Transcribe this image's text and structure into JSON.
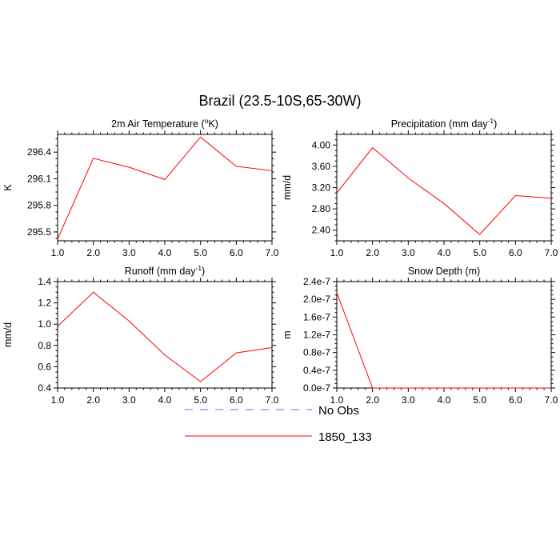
{
  "figure": {
    "title": "Brazil (23.5-10S,65-30W)"
  },
  "legend": {
    "placement": "bottom-center",
    "entries": [
      {
        "label": "No Obs",
        "color": "#6666ff",
        "dashed": true
      },
      {
        "label": "1850_133",
        "color": "#ff0000",
        "dashed": false
      }
    ]
  },
  "chart_data": [
    {
      "type": "line",
      "title": "2m Air Temperature (°K)",
      "title_parts": {
        "base": "2m Air Temperature (",
        "sup": "o",
        "rest": "K)"
      },
      "xlabel": "",
      "ylabel": "K",
      "x": [
        1,
        2,
        3,
        4,
        5,
        6,
        7
      ],
      "xlim": [
        1,
        7
      ],
      "ylim": [
        295.4,
        296.6
      ],
      "xticks": [
        "1.0",
        "2.0",
        "3.0",
        "4.0",
        "5.0",
        "6.0",
        "7.0"
      ],
      "yticks": [
        "295.5",
        "295.8",
        "296.1",
        "296.4"
      ],
      "ytick_values": [
        295.5,
        295.8,
        296.1,
        296.4
      ],
      "grid": false,
      "series": [
        {
          "name": "1850_133",
          "color": "#ff0000",
          "values": [
            295.42,
            296.33,
            296.23,
            296.09,
            296.57,
            296.24,
            296.19
          ]
        }
      ]
    },
    {
      "type": "line",
      "title": "Precipitation (mm day⁻¹)",
      "title_parts": {
        "base": "Precipitation (mm day",
        "sup": "-1",
        "rest": ")"
      },
      "xlabel": "",
      "ylabel": "mm/d",
      "x": [
        1,
        2,
        3,
        4,
        5,
        6,
        7
      ],
      "xlim": [
        1,
        7
      ],
      "ylim": [
        2.2,
        4.2
      ],
      "xticks": [
        "1.0",
        "2.0",
        "3.0",
        "4.0",
        "5.0",
        "6.0",
        "7.0"
      ],
      "yticks": [
        "2.40",
        "2.80",
        "3.20",
        "3.60",
        "4.00"
      ],
      "ytick_values": [
        2.4,
        2.8,
        3.2,
        3.6,
        4.0
      ],
      "grid": false,
      "series": [
        {
          "name": "1850_133",
          "color": "#ff0000",
          "values": [
            3.1,
            3.95,
            3.38,
            2.9,
            2.32,
            3.05,
            3.0
          ]
        }
      ]
    },
    {
      "type": "line",
      "title": "Runoff (mm day⁻¹)",
      "title_parts": {
        "base": "Runoff (mm day",
        "sup": "-1",
        "rest": ")"
      },
      "xlabel": "",
      "ylabel": "mm/d",
      "x": [
        1,
        2,
        3,
        4,
        5,
        6,
        7
      ],
      "xlim": [
        1,
        7
      ],
      "ylim": [
        0.4,
        1.4
      ],
      "xticks": [
        "1.0",
        "2.0",
        "3.0",
        "4.0",
        "5.0",
        "6.0",
        "7.0"
      ],
      "yticks": [
        "0.4",
        "0.6",
        "0.8",
        "1.0",
        "1.2",
        "1.4"
      ],
      "ytick_values": [
        0.4,
        0.6,
        0.8,
        1.0,
        1.2,
        1.4
      ],
      "grid": false,
      "series": [
        {
          "name": "1850_133",
          "color": "#ff0000",
          "values": [
            0.98,
            1.3,
            1.03,
            0.71,
            0.46,
            0.73,
            0.78
          ]
        }
      ]
    },
    {
      "type": "line",
      "title": "Snow Depth (m)",
      "title_parts": {
        "base": "Snow Depth (m)",
        "sup": "",
        "rest": ""
      },
      "xlabel": "",
      "ylabel": "m",
      "x": [
        1,
        2,
        3,
        4,
        5,
        6,
        7
      ],
      "xlim": [
        1,
        7
      ],
      "ylim": [
        0,
        2.4e-07
      ],
      "xticks": [
        "1.0",
        "2.0",
        "3.0",
        "4.0",
        "5.0",
        "6.0",
        "7.0"
      ],
      "yticks": [
        "0.0e-7",
        "0.4e-7",
        "0.8e-7",
        "1.2e-7",
        "1.6e-7",
        "2.0e-7",
        "2.4e-7"
      ],
      "ytick_values": [
        0,
        4e-08,
        8e-08,
        1.2e-07,
        1.6e-07,
        2e-07,
        2.4e-07
      ],
      "grid": false,
      "series": [
        {
          "name": "1850_133",
          "color": "#ff0000",
          "values": [
            2.15e-07,
            0,
            0,
            0,
            0,
            0,
            0
          ]
        }
      ]
    }
  ]
}
